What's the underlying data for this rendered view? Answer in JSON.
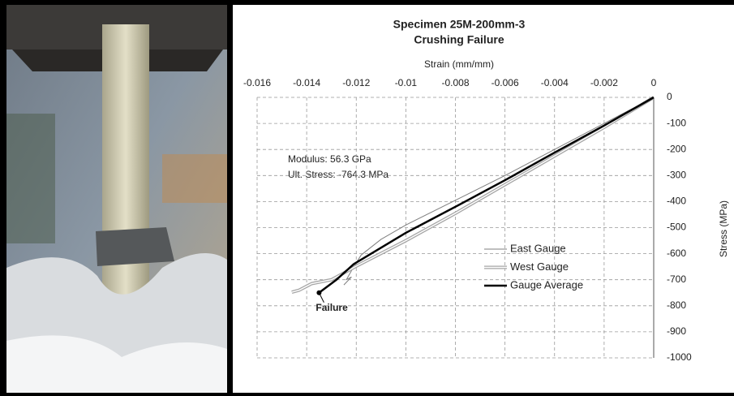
{
  "chart_data": {
    "type": "line",
    "title": "Specimen 25M-200mm-3",
    "subtitle": "Crushing Failure",
    "xlabel": "Strain (mm/mm)",
    "ylabel": "Stress (MPa)",
    "xlim": [
      -0.016,
      0
    ],
    "ylim": [
      -1000,
      0
    ],
    "xticks": [
      -0.016,
      -0.014,
      -0.012,
      -0.01,
      -0.008,
      -0.006,
      -0.004,
      -0.002,
      0
    ],
    "yticks": [
      0,
      -100,
      -200,
      -300,
      -400,
      -500,
      -600,
      -700,
      -800,
      -900,
      -1000
    ],
    "grid": true,
    "legend": "right",
    "annotations": [
      {
        "text": "Modulus: 56.3 GPa"
      },
      {
        "text": "Ult. Stress: -764.3 MPa"
      },
      {
        "text": "Failure",
        "x": -0.0135,
        "y": -750
      }
    ],
    "series": [
      {
        "name": "East Gauge",
        "color": "#7f7f7f",
        "line_style": "thin",
        "x": [
          0,
          -0.002,
          -0.004,
          -0.006,
          -0.008,
          -0.01,
          -0.011,
          -0.0118,
          -0.0121,
          -0.0124,
          -0.0122,
          -0.0125
        ],
        "values": [
          0,
          -100,
          -200,
          -300,
          -395,
          -490,
          -545,
          -605,
          -650,
          -700,
          -690,
          -720
        ]
      },
      {
        "name": "West Gauge",
        "color": "#a6a6a6",
        "line_style": "double",
        "x": [
          0,
          -0.002,
          -0.004,
          -0.006,
          -0.008,
          -0.01,
          -0.012,
          -0.013,
          -0.0138,
          -0.0143,
          -0.0146
        ],
        "values": [
          0,
          -115,
          -225,
          -335,
          -445,
          -550,
          -648,
          -700,
          -715,
          -740,
          -748
        ]
      },
      {
        "name": "Gauge Average",
        "color": "#000000",
        "line_style": "thick",
        "x": [
          0,
          -0.002,
          -0.004,
          -0.006,
          -0.008,
          -0.01,
          -0.0121,
          -0.0128,
          -0.0135
        ],
        "values": [
          0,
          -108,
          -212,
          -318,
          -420,
          -520,
          -640,
          -700,
          -750
        ]
      }
    ]
  }
}
